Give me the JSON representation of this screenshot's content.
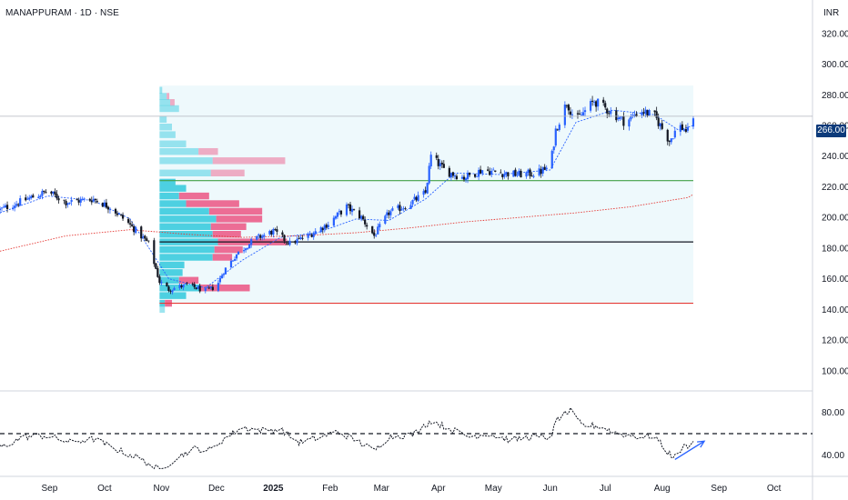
{
  "header": {
    "symbol_line": "MANAPPURAM · 1D · NSE",
    "currency": "INR"
  },
  "last_price": "266.00",
  "colors": {
    "up": "#2962ff",
    "down": "#131722",
    "profile_up": "#4dd0e1",
    "profile_down": "#ec6d95",
    "poc_line": "#131722",
    "vah_line": "#43a047",
    "val_line": "#e53935",
    "ema_fast": "#2962ff",
    "ema_slow": "#e53935",
    "rsi_line": "#131722",
    "arrow": "#2962ff",
    "profile_bg": "#eef9fc"
  },
  "chart_data": [
    {
      "type": "candlestick",
      "title": "",
      "x_axis": {
        "type": "date",
        "ticks": [
          {
            "date": "2024-09-01",
            "label": "Sep"
          },
          {
            "date": "2024-10-01",
            "label": "Oct"
          },
          {
            "date": "2024-11-01",
            "label": "Nov"
          },
          {
            "date": "2024-12-01",
            "label": "Dec"
          },
          {
            "date": "2025-01-01",
            "label": "2025"
          },
          {
            "date": "2025-02-01",
            "label": "Feb"
          },
          {
            "date": "2025-03-01",
            "label": "Mar"
          },
          {
            "date": "2025-04-01",
            "label": "Apr"
          },
          {
            "date": "2025-05-01",
            "label": "May"
          },
          {
            "date": "2025-06-01",
            "label": "Jun"
          },
          {
            "date": "2025-07-01",
            "label": "Jul"
          },
          {
            "date": "2025-08-01",
            "label": "Aug"
          },
          {
            "date": "2025-09-01",
            "label": "Sep"
          },
          {
            "date": "2025-10-01",
            "label": "Oct"
          }
        ],
        "range": [
          "2024-08-05",
          "2025-10-22"
        ]
      },
      "y_axis": {
        "range": [
          88,
          330
        ],
        "ticks": [
          "100.00",
          "120.00",
          "140.00",
          "160.00",
          "180.00",
          "200.00",
          "220.00",
          "240.00",
          "260.00",
          "280.00",
          "300.00",
          "320.00"
        ]
      },
      "price_path": [
        [
          "2024-08-05",
          205
        ],
        [
          "2024-08-20",
          212
        ],
        [
          "2024-08-31",
          217
        ],
        [
          "2024-09-10",
          210
        ],
        [
          "2024-09-25",
          212
        ],
        [
          "2024-10-05",
          206
        ],
        [
          "2024-10-15",
          195
        ],
        [
          "2024-10-25",
          183
        ],
        [
          "2024-10-31",
          158
        ],
        [
          "2024-11-05",
          153
        ],
        [
          "2024-11-15",
          156
        ],
        [
          "2024-11-25",
          152
        ],
        [
          "2024-12-01",
          155
        ],
        [
          "2024-12-05",
          165
        ],
        [
          "2024-12-12",
          176
        ],
        [
          "2024-12-22",
          186
        ],
        [
          "2025-01-01",
          191
        ],
        [
          "2025-01-10",
          183
        ],
        [
          "2025-01-20",
          188
        ],
        [
          "2025-01-31",
          196
        ],
        [
          "2025-02-10",
          207
        ],
        [
          "2025-02-18",
          200
        ],
        [
          "2025-02-25",
          188
        ],
        [
          "2025-03-05",
          203
        ],
        [
          "2025-03-15",
          208
        ],
        [
          "2025-03-25",
          216
        ],
        [
          "2025-03-28",
          240
        ],
        [
          "2025-04-05",
          230
        ],
        [
          "2025-04-15",
          226
        ],
        [
          "2025-04-25",
          231
        ],
        [
          "2025-05-05",
          229
        ],
        [
          "2025-05-15",
          228
        ],
        [
          "2025-05-25",
          229
        ],
        [
          "2025-06-01",
          233
        ],
        [
          "2025-06-04",
          257
        ],
        [
          "2025-06-10",
          275
        ],
        [
          "2025-06-15",
          263
        ],
        [
          "2025-06-25",
          276
        ],
        [
          "2025-07-05",
          268
        ],
        [
          "2025-07-12",
          262
        ],
        [
          "2025-07-20",
          270
        ],
        [
          "2025-07-28",
          266
        ],
        [
          "2025-08-01",
          258
        ],
        [
          "2025-08-05",
          250
        ],
        [
          "2025-08-10",
          260
        ],
        [
          "2025-08-15",
          256
        ],
        [
          "2025-08-18",
          266
        ]
      ],
      "volume_profile": {
        "range": [
          "2024-10-31",
          "2025-08-18"
        ],
        "poc": 184,
        "value_area_high": 224,
        "value_area_low": 144,
        "rows": [
          {
            "price": 283,
            "up": 3,
            "down": 0
          },
          {
            "price": 279,
            "up": 8,
            "down": 3
          },
          {
            "price": 275,
            "up": 12,
            "down": 5
          },
          {
            "price": 271,
            "up": 22,
            "down": 0
          },
          {
            "price": 264,
            "up": 8,
            "down": 0
          },
          {
            "price": 259,
            "up": 14,
            "down": 0
          },
          {
            "price": 254,
            "up": 18,
            "down": 0
          },
          {
            "price": 248,
            "up": 30,
            "down": 0
          },
          {
            "price": 243,
            "up": 44,
            "down": 22
          },
          {
            "price": 237,
            "up": 60,
            "down": 82
          },
          {
            "price": 229,
            "up": 58,
            "down": 38
          },
          {
            "price": 223,
            "up": 18,
            "down": 0
          },
          {
            "price": 219,
            "up": 30,
            "down": 0
          },
          {
            "price": 214,
            "up": 22,
            "down": 34
          },
          {
            "price": 209,
            "up": 30,
            "down": 60
          },
          {
            "price": 204,
            "up": 56,
            "down": 60
          },
          {
            "price": 199,
            "up": 64,
            "down": 52
          },
          {
            "price": 194,
            "up": 58,
            "down": 40
          },
          {
            "price": 189,
            "up": 60,
            "down": 32
          },
          {
            "price": 184,
            "up": 66,
            "down": 78
          },
          {
            "price": 179,
            "up": 62,
            "down": 32
          },
          {
            "price": 174,
            "up": 60,
            "down": 22
          },
          {
            "price": 169,
            "up": 28,
            "down": 0
          },
          {
            "price": 164,
            "up": 26,
            "down": 0
          },
          {
            "price": 159,
            "up": 22,
            "down": 22
          },
          {
            "price": 154,
            "up": 46,
            "down": 56
          },
          {
            "price": 149,
            "up": 30,
            "down": 0
          },
          {
            "price": 144,
            "up": 6,
            "down": 8
          },
          {
            "price": 140,
            "up": 6,
            "down": 0
          }
        ]
      },
      "ema_fast": [
        [
          "2024-08-05",
          203
        ],
        [
          "2024-08-31",
          214
        ],
        [
          "2024-09-25",
          211
        ],
        [
          "2024-10-15",
          199
        ],
        [
          "2024-11-05",
          160
        ],
        [
          "2024-11-25",
          154
        ],
        [
          "2024-12-15",
          172
        ],
        [
          "2025-01-05",
          187
        ],
        [
          "2025-01-25",
          190
        ],
        [
          "2025-02-15",
          199
        ],
        [
          "2025-03-05",
          198
        ],
        [
          "2025-03-25",
          212
        ],
        [
          "2025-04-10",
          229
        ],
        [
          "2025-05-05",
          228
        ],
        [
          "2025-06-01",
          231
        ],
        [
          "2025-06-15",
          262
        ],
        [
          "2025-07-05",
          270
        ],
        [
          "2025-07-28",
          267
        ],
        [
          "2025-08-10",
          257
        ],
        [
          "2025-08-18",
          260
        ]
      ],
      "ema_slow": [
        [
          "2024-08-05",
          178
        ],
        [
          "2024-09-10",
          188
        ],
        [
          "2024-10-15",
          192
        ],
        [
          "2024-11-15",
          189
        ],
        [
          "2024-12-15",
          187
        ],
        [
          "2025-01-15",
          188
        ],
        [
          "2025-02-15",
          190
        ],
        [
          "2025-03-15",
          193
        ],
        [
          "2025-04-15",
          197
        ],
        [
          "2025-05-15",
          200
        ],
        [
          "2025-06-15",
          203
        ],
        [
          "2025-07-15",
          207
        ],
        [
          "2025-08-15",
          213
        ],
        [
          "2025-08-18",
          215
        ]
      ]
    },
    {
      "type": "line",
      "title": "",
      "y_axis": {
        "range": [
          22,
          98
        ],
        "ticks": [
          "40.00",
          "80.00"
        ]
      },
      "reference_level": 60,
      "series": [
        {
          "points": [
            [
              "2024-08-05",
              47
            ],
            [
              "2024-08-18",
              57
            ],
            [
              "2024-08-31",
              58
            ],
            [
              "2024-09-12",
              52
            ],
            [
              "2024-09-25",
              55
            ],
            [
              "2024-10-08",
              45
            ],
            [
              "2024-10-20",
              37
            ],
            [
              "2024-10-31",
              26
            ],
            [
              "2024-11-08",
              36
            ],
            [
              "2024-11-18",
              46
            ],
            [
              "2024-11-28",
              45
            ],
            [
              "2024-12-05",
              55
            ],
            [
              "2024-12-15",
              66
            ],
            [
              "2024-12-25",
              63
            ],
            [
              "2025-01-05",
              64
            ],
            [
              "2025-01-15",
              52
            ],
            [
              "2025-01-25",
              56
            ],
            [
              "2025-02-05",
              62
            ],
            [
              "2025-02-15",
              54
            ],
            [
              "2025-02-25",
              44
            ],
            [
              "2025-03-05",
              57
            ],
            [
              "2025-03-18",
              59
            ],
            [
              "2025-03-28",
              72
            ],
            [
              "2025-04-08",
              64
            ],
            [
              "2025-04-18",
              57
            ],
            [
              "2025-04-28",
              60
            ],
            [
              "2025-05-10",
              54
            ],
            [
              "2025-05-22",
              57
            ],
            [
              "2025-06-01",
              56
            ],
            [
              "2025-06-05",
              74
            ],
            [
              "2025-06-12",
              81
            ],
            [
              "2025-06-18",
              68
            ],
            [
              "2025-06-28",
              67
            ],
            [
              "2025-07-08",
              60
            ],
            [
              "2025-07-20",
              57
            ],
            [
              "2025-07-28",
              58
            ],
            [
              "2025-08-03",
              44
            ],
            [
              "2025-08-08",
              38
            ],
            [
              "2025-08-12",
              47
            ],
            [
              "2025-08-18",
              51
            ]
          ]
        }
      ],
      "annotation_arrow": {
        "from": [
          "2025-08-08",
          36
        ],
        "to": [
          "2025-08-24",
          53
        ]
      }
    }
  ]
}
